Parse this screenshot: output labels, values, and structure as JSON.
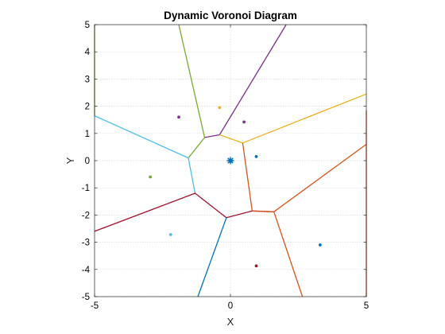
{
  "chart_data": {
    "type": "scatter",
    "title": "Dynamic Voronoi Diagram",
    "xlabel": "X",
    "ylabel": "Y",
    "xlim": [
      -5,
      5
    ],
    "ylim": [
      -5,
      5
    ],
    "xticks": [
      "-5",
      "0",
      "5"
    ],
    "yticks": [
      "5",
      "4",
      "3",
      "2",
      "1",
      "0",
      "-1",
      "-2",
      "-3",
      "-4",
      "-5"
    ],
    "grid": true,
    "box": true,
    "points": [
      {
        "x": 0.0,
        "y": 0.0,
        "color": "#0072bd",
        "style": "center"
      },
      {
        "x": 0.95,
        "y": 0.15,
        "color": "#0072bd"
      },
      {
        "x": -0.4,
        "y": 1.95,
        "color": "#edb120"
      },
      {
        "x": 0.5,
        "y": 1.42,
        "color": "#7e2f8e"
      },
      {
        "x": -1.9,
        "y": 1.6,
        "color": "#7e2f8e"
      },
      {
        "x": -2.95,
        "y": -0.6,
        "color": "#77ac30"
      },
      {
        "x": -2.2,
        "y": -2.72,
        "color": "#4dbeee"
      },
      {
        "x": 3.3,
        "y": -3.1,
        "color": "#0072bd"
      },
      {
        "x": 0.95,
        "y": -3.87,
        "color": "#a2142f"
      }
    ],
    "edges": [
      {
        "color": "#77ac30",
        "points": [
          [
            -5,
            5
          ],
          [
            -5,
            1.65
          ]
        ]
      },
      {
        "color": "#77ac30",
        "points": [
          [
            -1.9,
            5
          ],
          [
            -0.95,
            0.85
          ],
          [
            -1.55,
            0.1
          ]
        ]
      },
      {
        "color": "#7e2f8e",
        "points": [
          [
            2.05,
            5
          ],
          [
            -0.4,
            0.95
          ],
          [
            -0.95,
            0.85
          ]
        ]
      },
      {
        "color": "#edb120",
        "points": [
          [
            -0.4,
            0.95
          ],
          [
            0.45,
            0.65
          ],
          [
            5,
            2.45
          ]
        ]
      },
      {
        "color": "#4dbeee",
        "points": [
          [
            -5,
            1.65
          ],
          [
            -1.55,
            0.1
          ],
          [
            -1.3,
            -1.2
          ]
        ]
      },
      {
        "color": "#a2142f",
        "points": [
          [
            -5,
            -2.6
          ],
          [
            -1.3,
            -1.2
          ],
          [
            -0.15,
            -2.1
          ],
          [
            0.8,
            -1.85
          ],
          [
            1.6,
            -1.88
          ]
        ]
      },
      {
        "color": "#0072bd",
        "points": [
          [
            -0.15,
            -2.1
          ],
          [
            -1.2,
            -5
          ]
        ]
      },
      {
        "color": "#d95319",
        "points": [
          [
            0.45,
            0.65
          ],
          [
            0.8,
            -1.85
          ],
          [
            1.6,
            -1.88
          ],
          [
            2.65,
            -5
          ]
        ]
      },
      {
        "color": "#d95319",
        "points": [
          [
            1.6,
            -1.88
          ],
          [
            5,
            0.6
          ]
        ]
      },
      {
        "color": "#d95319",
        "points": [
          [
            5,
            1.85
          ],
          [
            5,
            -5
          ]
        ]
      }
    ]
  }
}
